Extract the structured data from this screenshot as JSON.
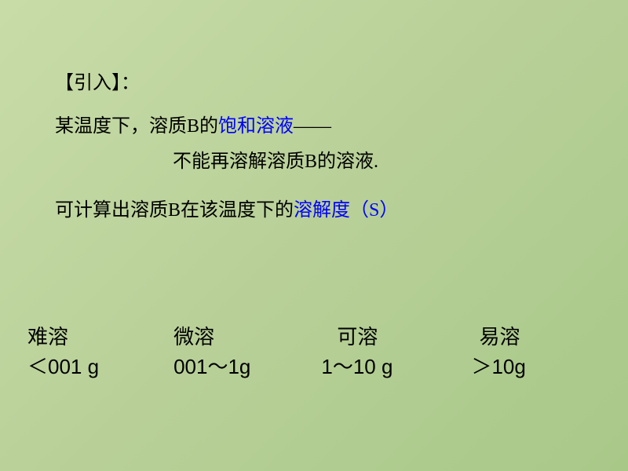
{
  "colors": {
    "background_gradient_start": "#c8dca8",
    "background_gradient_mid": "#b8d098",
    "background_gradient_end": "#a8c888",
    "text_primary": "#000000",
    "text_highlight": "#0000ff"
  },
  "typography": {
    "body_fontsize": 24,
    "category_fontsize": 26,
    "font_family": "SimSun"
  },
  "intro": {
    "heading": "【引入】：",
    "line2_prefix": "某温度下，溶质B的",
    "line2_highlight": "饱和溶液",
    "line2_suffix": "——",
    "line3": "不能再溶解溶质B的溶液.",
    "line4_prefix": "可计算出溶质B在该温度下的",
    "line4_highlight": "溶解度（S）"
  },
  "categories": [
    {
      "label": "难溶",
      "value": "＜001 g"
    },
    {
      "label": "微溶",
      "value": "001～1g"
    },
    {
      "label": "可溶",
      "value": "1～10 g"
    },
    {
      "label": "易溶",
      "value": "＞10g"
    }
  ]
}
